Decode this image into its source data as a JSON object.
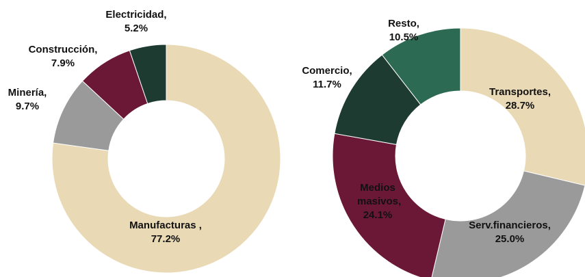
{
  "chart_data": [
    {
      "type": "pie",
      "categories": [
        "Manufacturas  ,",
        "Minería,",
        "Construcción,",
        "Electricidad,"
      ],
      "values": [
        77.2,
        9.7,
        7.9,
        5.2
      ],
      "value_labels": [
        "77.2%",
        "9.7%",
        "7.9%",
        "5.2%"
      ],
      "colors": [
        "#e9d9b5",
        "#9a9a9a",
        "#6b1836",
        "#1e3b31"
      ]
    },
    {
      "type": "pie",
      "categories": [
        "Transportes,",
        "Serv.financieros,",
        "Medios masivos,",
        "Comercio,",
        "Resto,"
      ],
      "values": [
        28.7,
        25.0,
        24.1,
        11.7,
        10.5
      ],
      "value_labels": [
        "28.7%",
        "25.0%",
        "24.1%",
        "11.7%",
        "10.5%"
      ],
      "colors": [
        "#e9d9b5",
        "#9a9a9a",
        "#6b1836",
        "#1e3b31",
        "#2d6a54"
      ]
    }
  ]
}
